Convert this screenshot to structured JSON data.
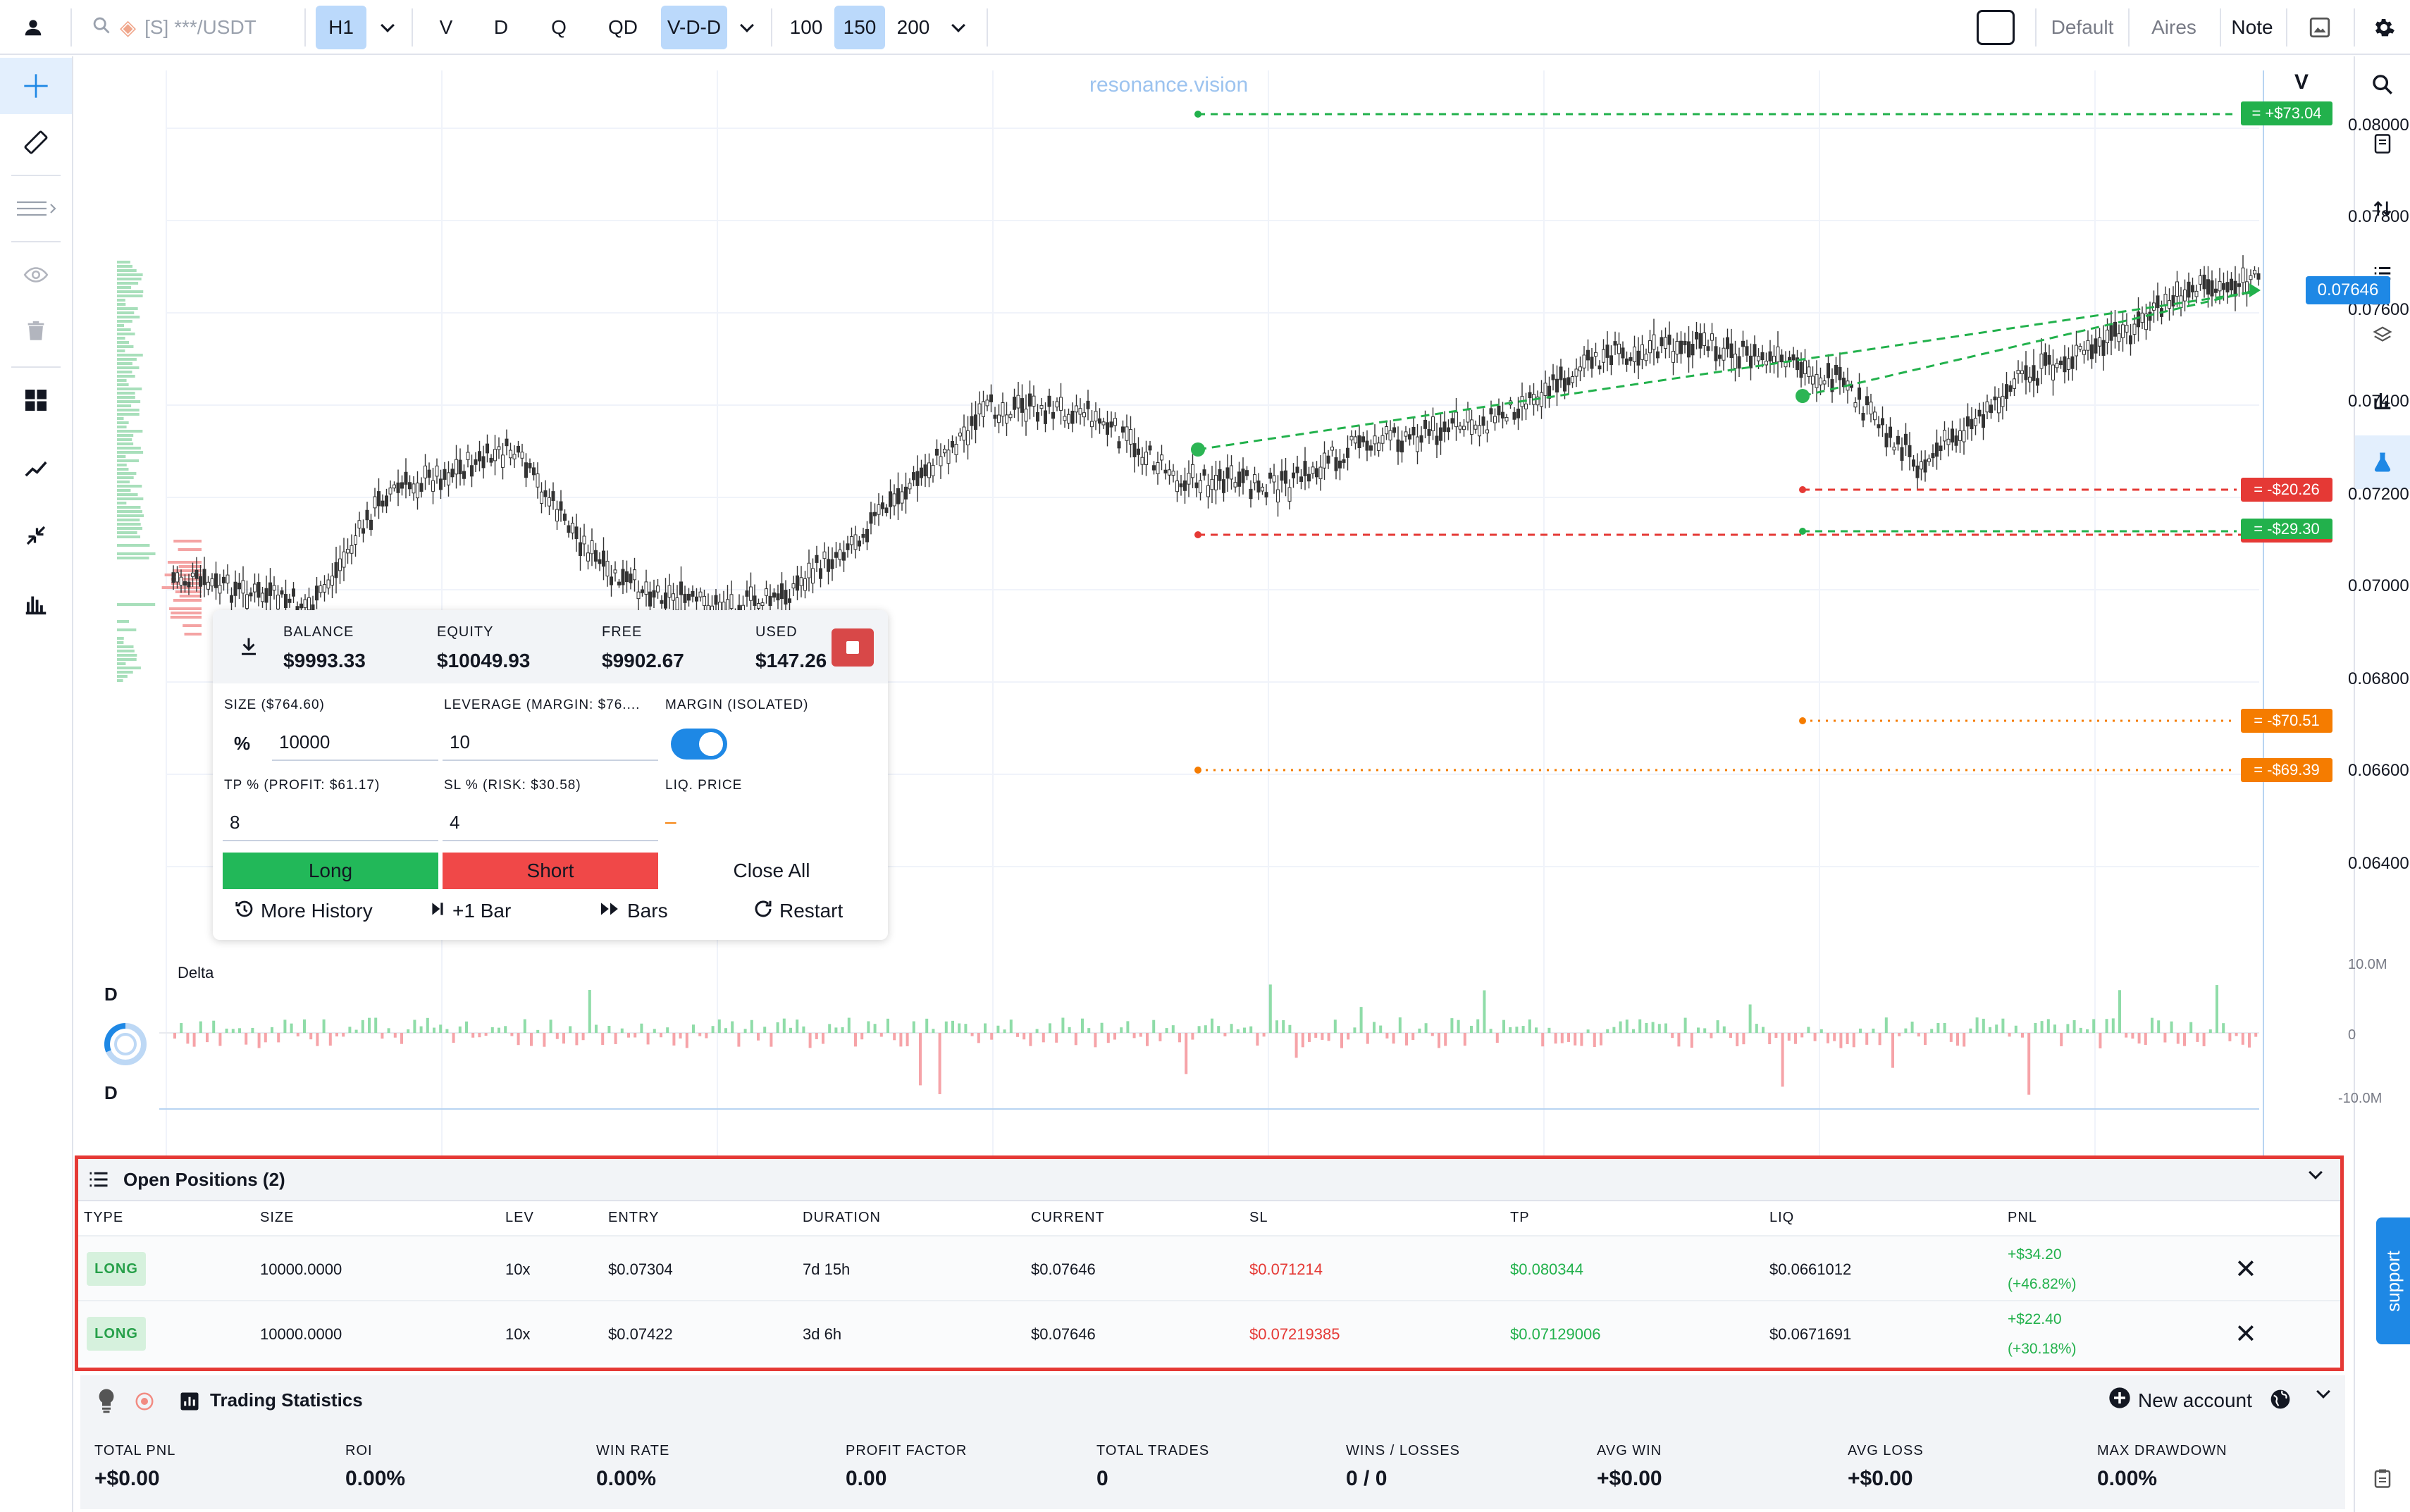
{
  "toolbar": {
    "symbol": "[S] ***/USDT",
    "timeframe": "H1",
    "chart_types": [
      "V",
      "D",
      "Q",
      "QD",
      "V-D-D"
    ],
    "active_chart_type": "V-D-D",
    "bar_counts": [
      "100",
      "150",
      "200"
    ],
    "active_bar_count": "150",
    "layouts": [
      "Default",
      "Aires",
      "Note"
    ]
  },
  "chart": {
    "watermark": "resonance.vision",
    "scale_label": "V",
    "price_ticks": [
      "0.08000",
      "0.07800",
      "0.07600",
      "0.07400",
      "0.07200",
      "0.07000",
      "0.06800",
      "0.06600",
      "0.06400"
    ],
    "current_price_label": "0.07646",
    "pl_labels": [
      {
        "text": "= +$73.04",
        "color": "#22b14c"
      },
      {
        "text": "= -$20.26",
        "color": "#e53935"
      },
      {
        "text": "= -$29.30",
        "color": "#22b14c"
      },
      {
        "text": "= -$70.51",
        "color": "#f57c00"
      },
      {
        "text": "= -$69.39",
        "color": "#f57c00"
      }
    ],
    "time_ticks": [
      "*****",
      "*****",
      "*****",
      "*****",
      "*****",
      "*****",
      "*****",
      "*****"
    ]
  },
  "trade_panel": {
    "balance_label": "BALANCE",
    "balance": "$9993.33",
    "equity_label": "EQUITY",
    "equity": "$10049.93",
    "free_label": "FREE",
    "free": "$9902.67",
    "used_label": "USED",
    "used": "$147.26",
    "size_label": "SIZE ($764.60)",
    "size_unit": "%",
    "size_value": "10000",
    "leverage_label": "LEVERAGE (MARGIN: $76....",
    "leverage_value": "10",
    "margin_label": "MARGIN (ISOLATED)",
    "tp_label": "TP % (PROFIT: $61.17)",
    "tp_value": "8",
    "sl_label": "SL % (RISK: $30.58)",
    "sl_value": "4",
    "liq_label": "LIQ. PRICE",
    "liq_value": "–",
    "long_label": "Long",
    "short_label": "Short",
    "close_all_label": "Close All",
    "more_history": "More History",
    "plus_bar": "+1 Bar",
    "bars": "Bars",
    "restart": "Restart"
  },
  "delta": {
    "title": "Delta",
    "label_top": "D",
    "label_bottom": "D",
    "axis": [
      "10.0M",
      "0",
      "-10.0M"
    ]
  },
  "positions": {
    "title": "Open Positions (2)",
    "columns": [
      "TYPE",
      "SIZE",
      "LEV",
      "ENTRY",
      "DURATION",
      "CURRENT",
      "SL",
      "TP",
      "LIQ",
      "PNL"
    ],
    "rows": [
      {
        "type": "LONG",
        "size": "10000.0000",
        "lev": "10x",
        "entry": "$0.07304",
        "duration": "7d 15h",
        "current": "$0.07646",
        "sl": "$0.071214",
        "tp": "$0.080344",
        "liq": "$0.0661012",
        "pnl": "+$34.20",
        "pnl_pct": "(+46.82%)"
      },
      {
        "type": "LONG",
        "size": "10000.0000",
        "lev": "10x",
        "entry": "$0.07422",
        "duration": "3d 6h",
        "current": "$0.07646",
        "sl": "$0.07219385",
        "tp": "$0.07129006",
        "liq": "$0.0671691",
        "pnl": "+$22.40",
        "pnl_pct": "(+30.18%)"
      }
    ]
  },
  "stats": {
    "title": "Trading Statistics",
    "new_account": "New account",
    "items": [
      {
        "label": "TOTAL PNL",
        "value": "+$0.00"
      },
      {
        "label": "ROI",
        "value": "0.00%"
      },
      {
        "label": "WIN RATE",
        "value": "0.00%"
      },
      {
        "label": "PROFIT FACTOR",
        "value": "0.00"
      },
      {
        "label": "TOTAL TRADES",
        "value": "0"
      },
      {
        "label": "WINS / LOSSES",
        "value": "0 / 0"
      },
      {
        "label": "AVG WIN",
        "value": "+$0.00"
      },
      {
        "label": "AVG LOSS",
        "value": "+$0.00"
      },
      {
        "label": "MAX DRAWDOWN",
        "value": "0.00%"
      }
    ]
  },
  "support": "support",
  "colors": {
    "accent": "#1e88e5",
    "long": "#22b14c",
    "short": "#e53935",
    "orange": "#f57c00",
    "active_bg": "#bbd9fb"
  }
}
